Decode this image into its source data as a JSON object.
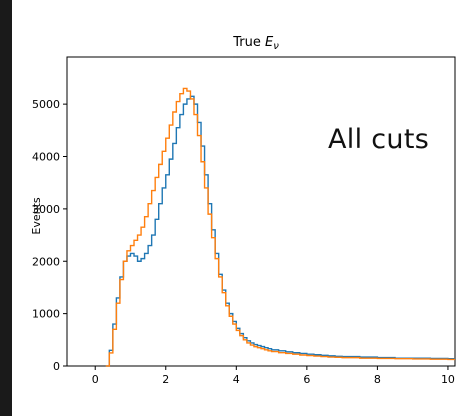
{
  "chart_data": {
    "type": "line",
    "drawstyle": "steps",
    "title": "True E_ν",
    "title_main": "True ",
    "title_symbol": "E",
    "title_subscript": "ν",
    "xlabel": "",
    "ylabel": "Events",
    "xlim": [
      -0.8,
      10.2
    ],
    "ylim": [
      0,
      5900
    ],
    "xticks": [
      0,
      2,
      4,
      6,
      8,
      10
    ],
    "yticks": [
      0,
      1000,
      2000,
      3000,
      4000,
      5000
    ],
    "grid": false,
    "annotation": "All cuts",
    "colors": {
      "series_blue": "#1f77b4",
      "series_orange": "#ff7f0e",
      "axis": "#000000"
    },
    "series": [
      {
        "color": "#1f77b4",
        "x": [
          0.4,
          0.5,
          0.6,
          0.7,
          0.8,
          0.9,
          1.0,
          1.1,
          1.2,
          1.3,
          1.4,
          1.5,
          1.6,
          1.7,
          1.8,
          1.9,
          2.0,
          2.1,
          2.2,
          2.3,
          2.4,
          2.5,
          2.6,
          2.7,
          2.8,
          2.9,
          3.0,
          3.1,
          3.2,
          3.3,
          3.4,
          3.5,
          3.6,
          3.7,
          3.8,
          3.9,
          4.0,
          4.1,
          4.2,
          4.3,
          4.4,
          4.5,
          4.6,
          4.7,
          4.8,
          4.9,
          5.0,
          5.2,
          5.4,
          5.6,
          5.8,
          6.0,
          6.2,
          6.4,
          6.6,
          6.8,
          7.0,
          7.5,
          8.0,
          8.5,
          9.0,
          9.5,
          10.0
        ],
        "values": [
          300,
          800,
          1300,
          1700,
          2000,
          2100,
          2150,
          2100,
          2000,
          2050,
          2150,
          2300,
          2500,
          2800,
          3100,
          3400,
          3650,
          3950,
          4250,
          4550,
          4800,
          5000,
          5100,
          5150,
          5000,
          4650,
          4200,
          3650,
          3100,
          2600,
          2150,
          1750,
          1450,
          1200,
          1000,
          850,
          720,
          620,
          540,
          480,
          440,
          410,
          390,
          370,
          350,
          330,
          310,
          290,
          270,
          255,
          240,
          225,
          215,
          205,
          195,
          185,
          180,
          170,
          160,
          150,
          150,
          145,
          140
        ]
      },
      {
        "color": "#ff7f0e",
        "x": [
          0.4,
          0.5,
          0.6,
          0.7,
          0.8,
          0.9,
          1.0,
          1.1,
          1.2,
          1.3,
          1.4,
          1.5,
          1.6,
          1.7,
          1.8,
          1.9,
          2.0,
          2.1,
          2.2,
          2.3,
          2.4,
          2.5,
          2.6,
          2.7,
          2.8,
          2.9,
          3.0,
          3.1,
          3.2,
          3.3,
          3.4,
          3.5,
          3.6,
          3.7,
          3.8,
          3.9,
          4.0,
          4.1,
          4.2,
          4.3,
          4.4,
          4.5,
          4.6,
          4.7,
          4.8,
          4.9,
          5.0,
          5.2,
          5.4,
          5.6,
          5.8,
          6.0,
          6.2,
          6.4,
          6.6,
          6.8,
          7.0,
          7.5,
          8.0,
          8.5,
          9.0,
          9.5,
          10.0
        ],
        "values": [
          250,
          700,
          1200,
          1650,
          2000,
          2200,
          2300,
          2400,
          2500,
          2650,
          2850,
          3100,
          3350,
          3600,
          3850,
          4100,
          4350,
          4600,
          4850,
          5050,
          5200,
          5300,
          5250,
          5100,
          4800,
          4400,
          3900,
          3400,
          2900,
          2450,
          2050,
          1700,
          1400,
          1150,
          950,
          800,
          680,
          580,
          500,
          440,
          400,
          370,
          350,
          330,
          310,
          290,
          275,
          255,
          240,
          225,
          210,
          200,
          190,
          180,
          170,
          165,
          160,
          150,
          145,
          140,
          135,
          130,
          125
        ]
      }
    ]
  }
}
